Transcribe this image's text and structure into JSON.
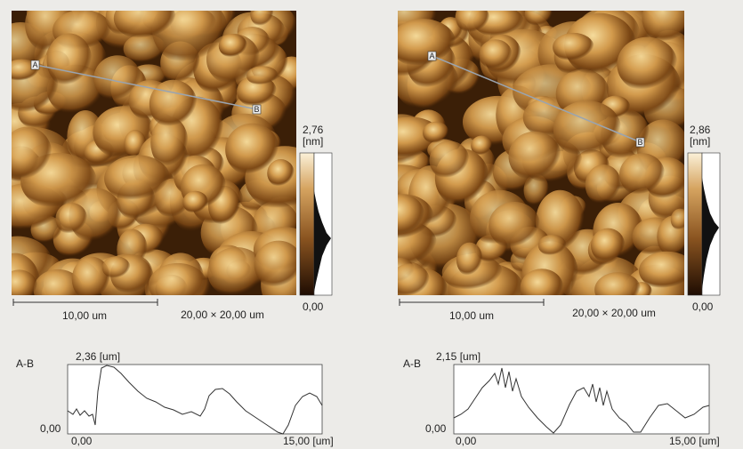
{
  "panels": [
    {
      "point_a": "A",
      "point_b": "B",
      "scale_max": "2,76",
      "scale_unit": "[nm]",
      "scale_min": "0,00",
      "scale_bar": "10,00 um",
      "scan_size": "20,00 × 20,00 um",
      "profile_label": "A-B",
      "profile_max": "2,36 [um]",
      "profile_min": "0,00",
      "profile_x_start": "0,00",
      "profile_x_end": "15,00 [um]"
    },
    {
      "point_a": "A",
      "point_b": "B",
      "scale_max": "2,86",
      "scale_unit": "[nm]",
      "scale_min": "0,00",
      "scale_bar": "10,00 um",
      "scan_size": "20,00 × 20,00 um",
      "profile_label": "A-B",
      "profile_max": "2,15 [um]",
      "profile_min": "0,00",
      "profile_x_start": "0,00",
      "profile_x_end": "15,00 [um]"
    }
  ]
}
